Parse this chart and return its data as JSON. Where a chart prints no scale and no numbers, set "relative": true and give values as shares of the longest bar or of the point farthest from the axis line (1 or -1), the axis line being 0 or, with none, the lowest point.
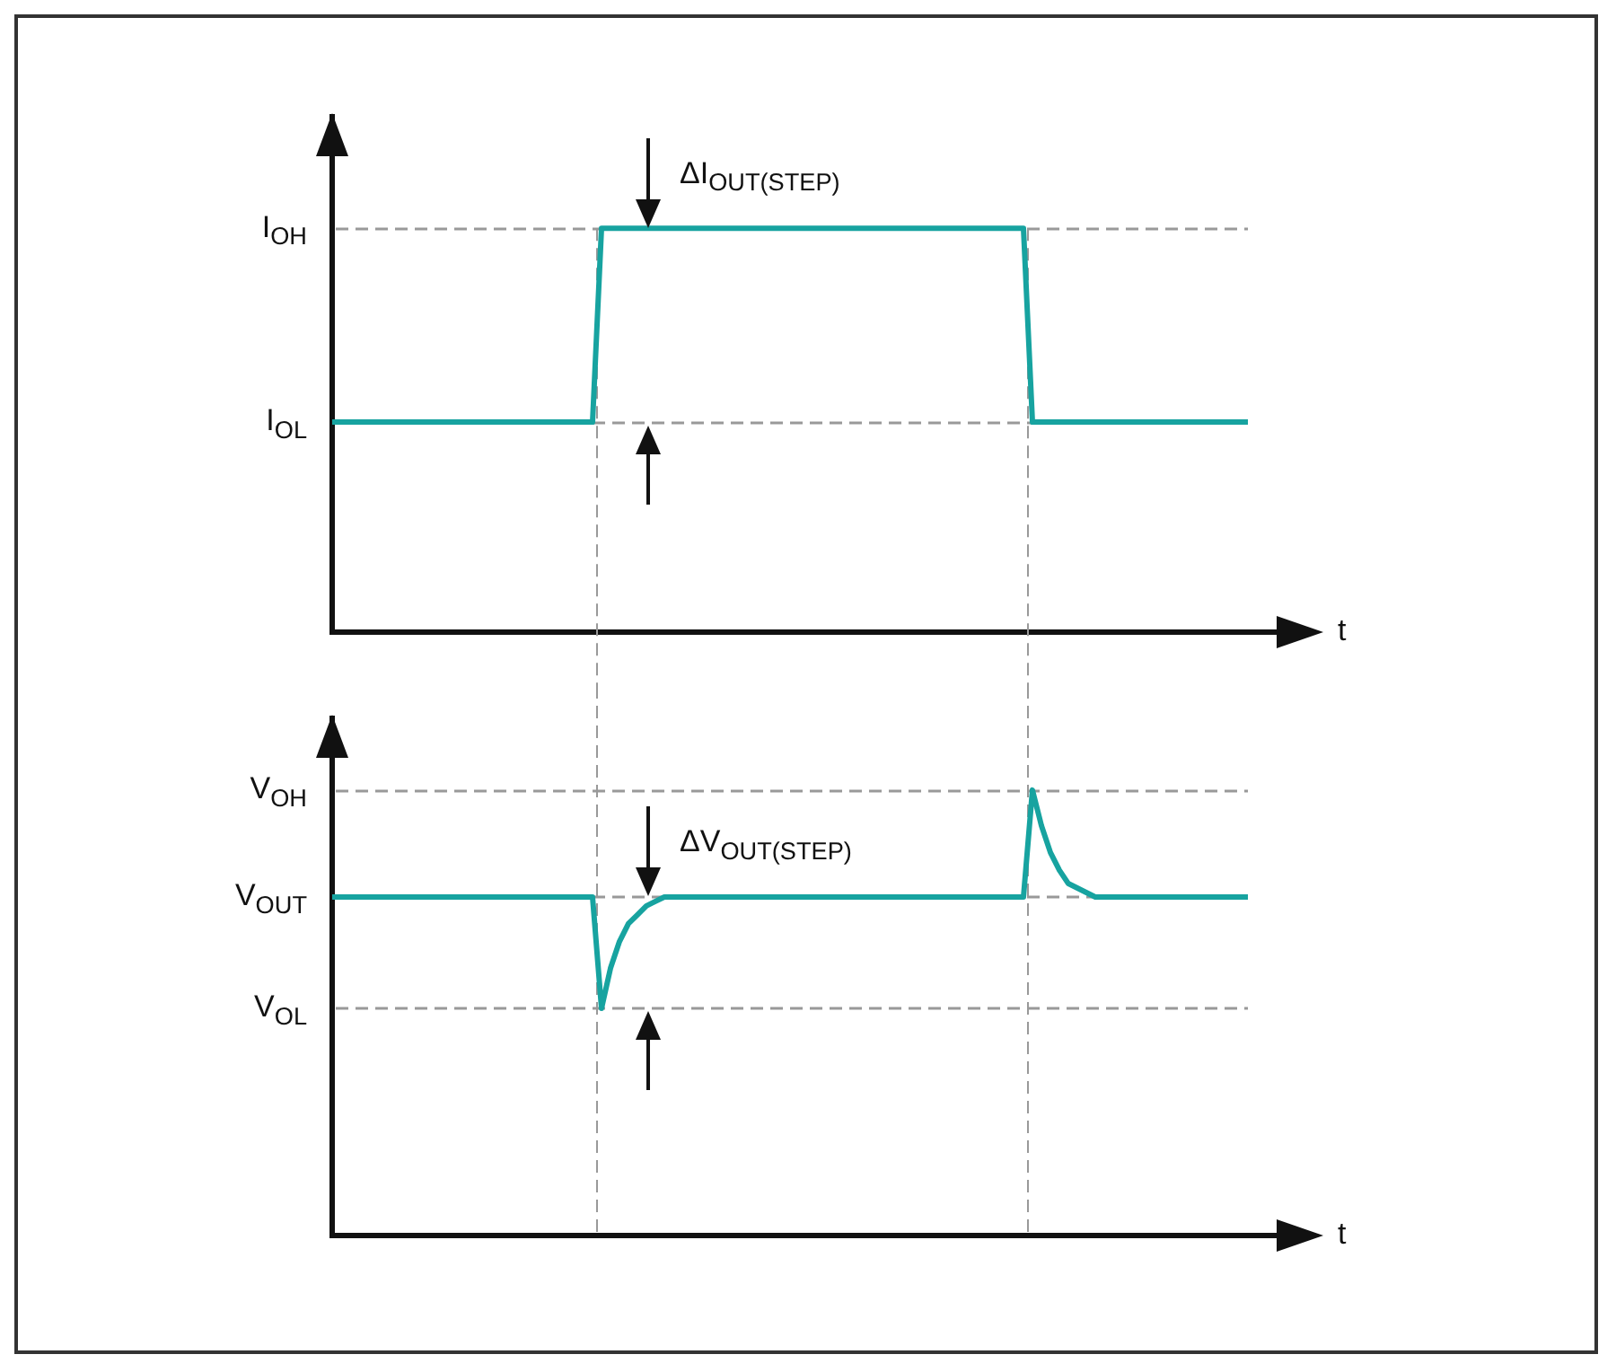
{
  "chart_data": [
    {
      "type": "line",
      "relative": true,
      "xlabel": "t",
      "marker": "none",
      "categories": [
        null,
        null,
        null,
        null,
        null,
        null,
        null,
        null,
        null,
        null,
        null,
        null,
        null,
        null,
        null,
        null,
        null,
        null,
        null,
        null,
        null,
        null,
        null,
        null,
        null,
        null,
        null,
        null,
        null,
        null,
        null,
        null,
        null,
        null,
        null,
        null,
        null,
        null,
        null,
        null,
        null,
        null,
        null,
        null,
        null,
        null,
        null,
        null,
        null,
        null,
        null,
        null,
        null,
        null,
        null,
        null,
        null,
        null,
        null,
        null,
        null,
        null,
        null,
        null,
        null,
        null,
        null,
        null,
        null,
        null,
        null,
        null,
        null,
        null,
        null,
        null,
        null,
        null,
        null,
        null,
        null,
        null,
        null,
        null,
        null,
        null,
        null,
        null,
        null,
        null,
        null,
        null,
        null,
        null,
        null,
        null,
        null,
        null,
        null,
        null,
        null,
        null,
        null
      ],
      "series": [
        {
          "color": "#17a3a0",
          "values": [
            0.52,
            0.52,
            0.52,
            0.52,
            0.52,
            0.52,
            0.52,
            0.52,
            0.52,
            0.52,
            0.52,
            0.52,
            0.52,
            0.52,
            0.52,
            0.52,
            0.52,
            0.52,
            0.52,
            0.52,
            0.52,
            0.52,
            0.52,
            0.52,
            0.52,
            0.52,
            0.52,
            0.52,
            0.52,
            0.52,
            1,
            1,
            1,
            1,
            1,
            1,
            1,
            1,
            1,
            1,
            1,
            1,
            1,
            1,
            1,
            1,
            1,
            1,
            1,
            1,
            1,
            1,
            1,
            1,
            1,
            1,
            1,
            1,
            1,
            1,
            1,
            1,
            1,
            1,
            1,
            1,
            1,
            1,
            1,
            1,
            1,
            1,
            1,
            1,
            1,
            1,
            1,
            1,
            0.52,
            0.52,
            0.52,
            0.52,
            0.52,
            0.52,
            0.52,
            0.52,
            0.52,
            0.52,
            0.52,
            0.52,
            0.52,
            0.52,
            0.52,
            0.52,
            0.52,
            0.52,
            0.52,
            0.52,
            0.52,
            0.52,
            0.52,
            0.52,
            0.52
          ]
        }
      ],
      "ref_lines": [
        {
          "axis": "y",
          "value": 1,
          "label": "I$_{OH}$"
        },
        {
          "axis": "y",
          "value": 0.52,
          "label": "I$_{OL}$"
        }
      ],
      "annotations": [
        {
          "text": "ΔI$_{OUT(STEP)}$",
          "y": 1
        }
      ]
    },
    {
      "type": "line",
      "relative": true,
      "xlabel": "t",
      "marker": "none",
      "categories": [
        null,
        null,
        null,
        null,
        null,
        null,
        null,
        null,
        null,
        null,
        null,
        null,
        null,
        null,
        null,
        null,
        null,
        null,
        null,
        null,
        null,
        null,
        null,
        null,
        null,
        null,
        null,
        null,
        null,
        null,
        null,
        null,
        null,
        null,
        null,
        null,
        null,
        null,
        null,
        null,
        null,
        null,
        null,
        null,
        null,
        null,
        null,
        null,
        null,
        null,
        null,
        null,
        null,
        null,
        null,
        null,
        null,
        null,
        null,
        null,
        null,
        null,
        null,
        null,
        null,
        null,
        null,
        null,
        null,
        null,
        null,
        null,
        null,
        null,
        null,
        null,
        null,
        null,
        null,
        null,
        null,
        null,
        null,
        null,
        null,
        null,
        null,
        null,
        null,
        null,
        null,
        null,
        null,
        null,
        null,
        null,
        null,
        null,
        null,
        null,
        null,
        null,
        null
      ],
      "series": [
        {
          "color": "#17a3a0",
          "values": [
            0.76,
            0.76,
            0.76,
            0.76,
            0.76,
            0.76,
            0.76,
            0.76,
            0.76,
            0.76,
            0.76,
            0.76,
            0.76,
            0.76,
            0.76,
            0.76,
            0.76,
            0.76,
            0.76,
            0.76,
            0.76,
            0.76,
            0.76,
            0.76,
            0.76,
            0.76,
            0.76,
            0.76,
            0.76,
            0.76,
            0.51,
            0.6,
            0.66,
            0.7,
            0.72,
            0.74,
            0.75,
            0.76,
            0.76,
            0.76,
            0.76,
            0.76,
            0.76,
            0.76,
            0.76,
            0.76,
            0.76,
            0.76,
            0.76,
            0.76,
            0.76,
            0.76,
            0.76,
            0.76,
            0.76,
            0.76,
            0.76,
            0.76,
            0.76,
            0.76,
            0.76,
            0.76,
            0.76,
            0.76,
            0.76,
            0.76,
            0.76,
            0.76,
            0.76,
            0.76,
            0.76,
            0.76,
            0.76,
            0.76,
            0.76,
            0.76,
            0.76,
            0.76,
            1,
            0.92,
            0.86,
            0.82,
            0.79,
            0.78,
            0.77,
            0.76,
            0.76,
            0.76,
            0.76,
            0.76,
            0.76,
            0.76,
            0.76,
            0.76,
            0.76,
            0.76,
            0.76,
            0.76,
            0.76,
            0.76,
            0.76,
            0.76,
            0.76
          ]
        }
      ],
      "ref_lines": [
        {
          "axis": "y",
          "value": 1,
          "label": "V$_{OH}$"
        },
        {
          "axis": "y",
          "value": 0.76,
          "label": "V$_{OUT}$"
        },
        {
          "axis": "y",
          "value": 0.51,
          "label": "V$_{OL}$"
        }
      ],
      "annotations": [
        {
          "text": "ΔV$_{OUT(STEP)}$",
          "y": 0.76
        }
      ]
    }
  ]
}
